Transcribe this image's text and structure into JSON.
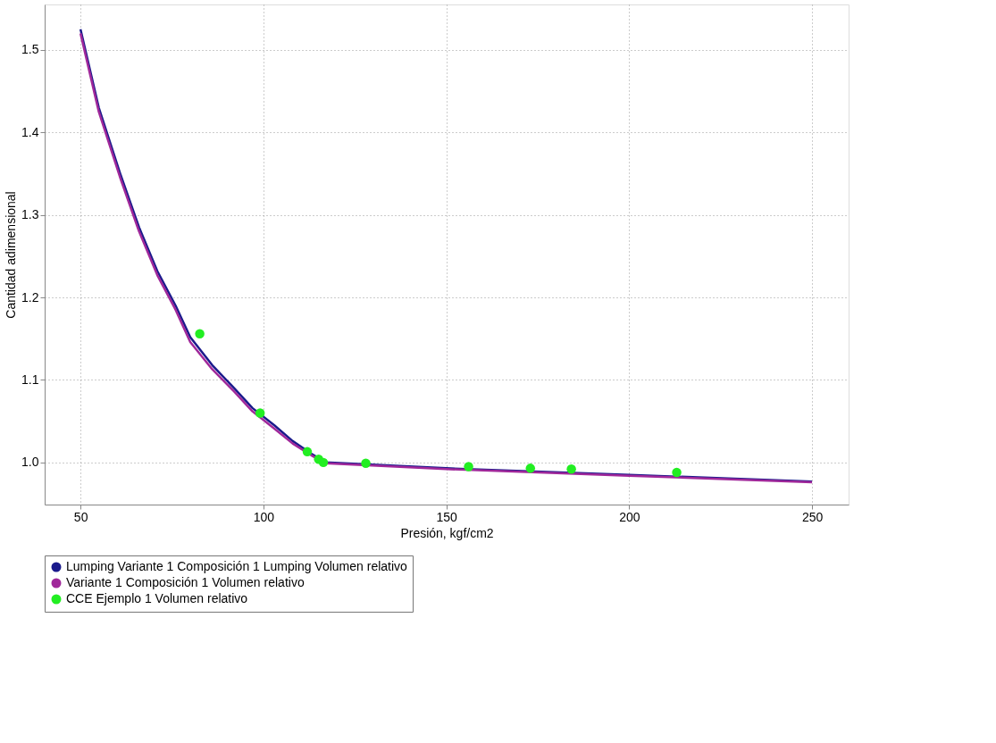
{
  "chart_data": {
    "type": "line",
    "xlabel": "Presión, kgf/cm2",
    "ylabel": "Cantidad adimensional",
    "xlim": [
      40.2,
      260
    ],
    "ylim": [
      0.949,
      1.555
    ],
    "xticks": [
      50,
      100,
      150,
      200,
      250
    ],
    "yticks": [
      {
        "value": 1,
        "label": "1.0"
      },
      1.1,
      1.2,
      1.3,
      1.4,
      1.5
    ],
    "grid": true,
    "legend": "bottom left",
    "series": [
      {
        "name": "Lumping Variante 1 Composición 1 Lumping Volumen relativo",
        "color": "#1a1a8c",
        "x": [
          50,
          55,
          61,
          66,
          71,
          76,
          80,
          86,
          92,
          97,
          103,
          108,
          113,
          117,
          150,
          200,
          250
        ],
        "values": [
          1.525,
          1.43,
          1.348,
          1.285,
          1.232,
          1.19,
          1.152,
          1.118,
          1.09,
          1.066,
          1.045,
          1.026,
          1.011,
          1.0,
          0.993,
          0.985,
          0.977
        ]
      },
      {
        "name": "Variante 1 Composición 1 Volumen relativo",
        "color": "#a0289a",
        "x": [
          50,
          55,
          61,
          66,
          71,
          76,
          80,
          86,
          92,
          97,
          103,
          108,
          113,
          117,
          150,
          200,
          250
        ],
        "values": [
          1.52,
          1.425,
          1.343,
          1.28,
          1.227,
          1.185,
          1.146,
          1.113,
          1.086,
          1.062,
          1.041,
          1.023,
          1.009,
          0.999,
          0.992,
          0.984,
          0.976
        ]
      },
      {
        "name": "CCE Ejemplo 1 Volumen relativo",
        "type": "scatter",
        "color": "#22ee22",
        "marker": "circle",
        "x": [
          82.6,
          99.1,
          112,
          115.1,
          116.4,
          128,
          156.1,
          173,
          184.2,
          213
        ],
        "values": [
          1.156,
          1.06,
          1.013,
          1.004,
          1.0,
          0.999,
          0.995,
          0.993,
          0.992,
          0.988
        ]
      }
    ]
  }
}
